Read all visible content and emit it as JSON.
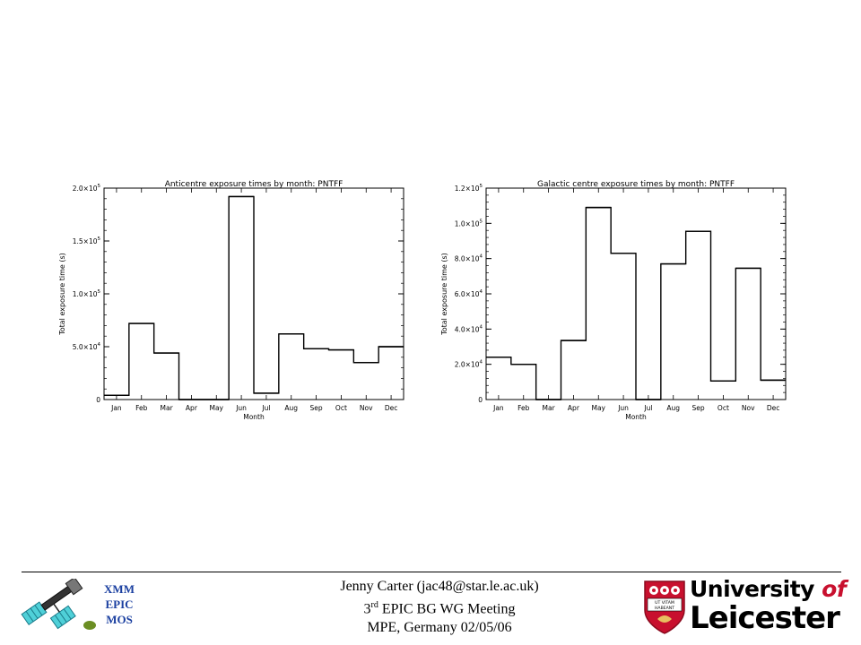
{
  "chart_data": [
    {
      "type": "step",
      "title": "Anticentre exposure times by month: PNTFF",
      "xlabel": "Month",
      "ylabel": "Total exposure time (s)",
      "categories": [
        "Jan",
        "Feb",
        "Mar",
        "Apr",
        "May",
        "Jun",
        "Jul",
        "Aug",
        "Sep",
        "Oct",
        "Nov",
        "Dec"
      ],
      "values": [
        4000,
        72000,
        44000,
        0,
        0,
        192000,
        6000,
        62000,
        48000,
        47000,
        35000,
        50000
      ],
      "ylim": [
        0,
        200000
      ],
      "yticks": [
        0,
        50000,
        100000,
        150000,
        200000
      ],
      "ytick_labels": [
        {
          "mantissa": "0",
          "exp": ""
        },
        {
          "mantissa": "5.0×10",
          "exp": "4"
        },
        {
          "mantissa": "1.0×10",
          "exp": "5"
        },
        {
          "mantissa": "1.5×10",
          "exp": "5"
        },
        {
          "mantissa": "2.0×10",
          "exp": "5"
        }
      ],
      "grid": false
    },
    {
      "type": "step",
      "title": "Galactic centre exposure times by month: PNTFF",
      "xlabel": "Month",
      "ylabel": "Total exposure time (s)",
      "categories": [
        "Jan",
        "Feb",
        "Mar",
        "Apr",
        "May",
        "Jun",
        "Jul",
        "Aug",
        "Sep",
        "Oct",
        "Nov",
        "Dec"
      ],
      "values": [
        24000,
        20000,
        0,
        33500,
        109000,
        83000,
        0,
        77000,
        95500,
        10500,
        74500,
        11000
      ],
      "ylim": [
        0,
        120000
      ],
      "yticks": [
        0,
        20000,
        40000,
        60000,
        80000,
        100000,
        120000
      ],
      "ytick_labels": [
        {
          "mantissa": "0",
          "exp": ""
        },
        {
          "mantissa": "2.0×10",
          "exp": "4"
        },
        {
          "mantissa": "4.0×10",
          "exp": "4"
        },
        {
          "mantissa": "6.0×10",
          "exp": "4"
        },
        {
          "mantissa": "8.0×10",
          "exp": "4"
        },
        {
          "mantissa": "1.0×10",
          "exp": "5"
        },
        {
          "mantissa": "1.2×10",
          "exp": "5"
        }
      ],
      "grid": false
    }
  ],
  "footer": {
    "xmm": [
      "XMM",
      "EPIC",
      "MOS"
    ],
    "author_line": "Jenny Carter (jac48@star.le.ac.uk)",
    "meeting_ordinal": "3",
    "meeting_sup": "rd",
    "meeting_rest": " EPIC BG WG Meeting",
    "location_line": "MPE, Germany 02/05/06",
    "university_word": "University",
    "university_of": "of",
    "university_city": "Leicester",
    "crest_motto": "UT VITAM HABEANT"
  },
  "colors": {
    "xmm_text": "#1a3fa0",
    "leicester_red": "#c8102e"
  }
}
